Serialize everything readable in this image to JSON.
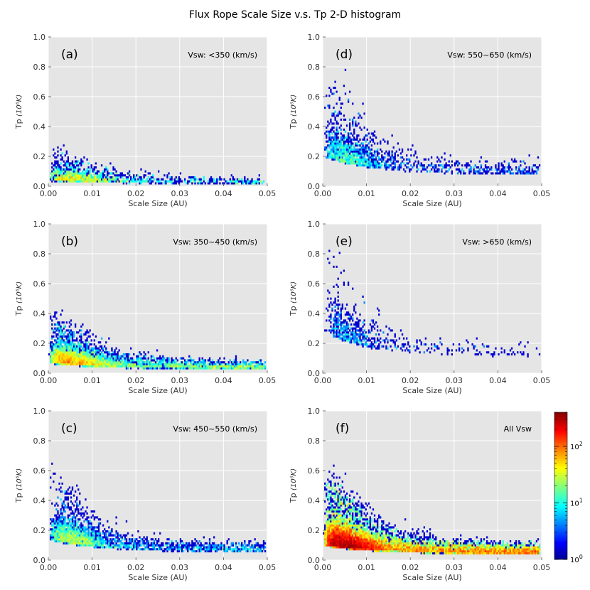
{
  "figure": {
    "title": "Flux Rope Scale Size v.s. Tp 2-D histogram",
    "colorbar": {
      "scale": "log",
      "range": [
        1,
        400
      ],
      "colormap": "jet",
      "ticks": [
        {
          "value": 1,
          "base": "10",
          "exp": "0"
        },
        {
          "value": 10,
          "base": "10",
          "exp": "1"
        },
        {
          "value": 100,
          "base": "10",
          "exp": "2"
        }
      ]
    }
  },
  "chart_data": [
    {
      "type": "heatmap",
      "panel": "(a)",
      "label": "Vsw: <350 (km/s)",
      "xlabel": "Scale Size (AU)",
      "ylabel_main": "Tp",
      "ylabel_unit": "(10⁶K)",
      "xlim": [
        0,
        0.05
      ],
      "ylim": [
        0,
        1.0
      ],
      "xticks": [
        "0.00",
        "0.01",
        "0.02",
        "0.03",
        "0.04",
        "0.05"
      ],
      "yticks": [
        "0.0",
        "0.2",
        "0.4",
        "0.6",
        "0.8",
        "1.0"
      ],
      "model": {
        "n": 1400,
        "x_peak": 0.0012,
        "x_scale": 0.012,
        "x_tail": 0.35,
        "t_peak": 0.04,
        "t_width": 0.05,
        "t_spread": 0.18,
        "max_count": 60
      }
    },
    {
      "type": "heatmap",
      "panel": "(d)",
      "label": "Vsw: 550~650 (km/s)",
      "xlabel": "Scale Size (AU)",
      "ylabel_main": "Tp",
      "ylabel_unit": "(10⁶K)",
      "xlim": [
        0,
        0.05
      ],
      "ylim": [
        0,
        1.0
      ],
      "xticks": [
        "0.00",
        "0.01",
        "0.02",
        "0.03",
        "0.04",
        "0.05"
      ],
      "yticks": [
        "0.0",
        "0.2",
        "0.4",
        "0.6",
        "0.8",
        "1.0"
      ],
      "model": {
        "n": 1800,
        "x_peak": 0.0022,
        "x_scale": 0.008,
        "x_tail": 0.3,
        "t_peak": 0.2,
        "t_width": 0.12,
        "t_spread": 0.55,
        "max_count": 25
      }
    },
    {
      "type": "heatmap",
      "panel": "(b)",
      "label": "Vsw: 350~450 (km/s)",
      "xlabel": "Scale Size (AU)",
      "ylabel_main": "Tp",
      "ylabel_unit": "(10⁶K)",
      "xlim": [
        0,
        0.05
      ],
      "ylim": [
        0,
        1.0
      ],
      "xticks": [
        "0.00",
        "0.01",
        "0.02",
        "0.03",
        "0.04",
        "0.05"
      ],
      "yticks": [
        "0.0",
        "0.2",
        "0.4",
        "0.6",
        "0.8",
        "1.0"
      ],
      "model": {
        "n": 5200,
        "x_peak": 0.0015,
        "x_scale": 0.009,
        "x_tail": 0.45,
        "t_peak": 0.07,
        "t_width": 0.07,
        "t_spread": 0.3,
        "max_count": 120
      }
    },
    {
      "type": "heatmap",
      "panel": "(e)",
      "label": "Vsw: >650 (km/s)",
      "xlabel": "Scale Size (AU)",
      "ylabel_main": "Tp",
      "ylabel_unit": "(10⁶K)",
      "xlim": [
        0,
        0.05
      ],
      "ylim": [
        0,
        1.0
      ],
      "xticks": [
        "0.00",
        "0.01",
        "0.02",
        "0.03",
        "0.04",
        "0.05"
      ],
      "yticks": [
        "0.0",
        "0.2",
        "0.4",
        "0.6",
        "0.8",
        "1.0"
      ],
      "model": {
        "n": 700,
        "x_peak": 0.0025,
        "x_scale": 0.007,
        "x_tail": 0.25,
        "t_peak": 0.28,
        "t_width": 0.15,
        "t_spread": 0.6,
        "max_count": 12
      }
    },
    {
      "type": "heatmap",
      "panel": "(c)",
      "label": "Vsw: 450~550 (km/s)",
      "xlabel": "Scale Size (AU)",
      "ylabel_main": "Tp",
      "ylabel_unit": "(10⁶K)",
      "xlim": [
        0,
        0.05
      ],
      "ylim": [
        0,
        1.0
      ],
      "xticks": [
        "0.00",
        "0.01",
        "0.02",
        "0.03",
        "0.04",
        "0.05"
      ],
      "yticks": [
        "0.0",
        "0.2",
        "0.4",
        "0.6",
        "0.8",
        "1.0"
      ],
      "model": {
        "n": 3000,
        "x_peak": 0.0018,
        "x_scale": 0.008,
        "x_tail": 0.35,
        "t_peak": 0.14,
        "t_width": 0.09,
        "t_spread": 0.45,
        "max_count": 45
      }
    },
    {
      "type": "heatmap",
      "panel": "(f)",
      "label": "All Vsw",
      "xlabel": "Scale Size (AU)",
      "ylabel_main": "Tp",
      "ylabel_unit": "(10⁶K)",
      "xlim": [
        0,
        0.05
      ],
      "ylim": [
        0,
        1.0
      ],
      "xticks": [
        "0.00",
        "0.01",
        "0.02",
        "0.03",
        "0.04",
        "0.05"
      ],
      "yticks": [
        "0.0",
        "0.2",
        "0.4",
        "0.6",
        "0.8",
        "1.0"
      ],
      "model": {
        "n": 11000,
        "x_peak": 0.0015,
        "x_scale": 0.009,
        "x_tail": 0.45,
        "t_peak": 0.1,
        "t_width": 0.09,
        "t_spread": 0.45,
        "max_count": 400
      }
    }
  ]
}
